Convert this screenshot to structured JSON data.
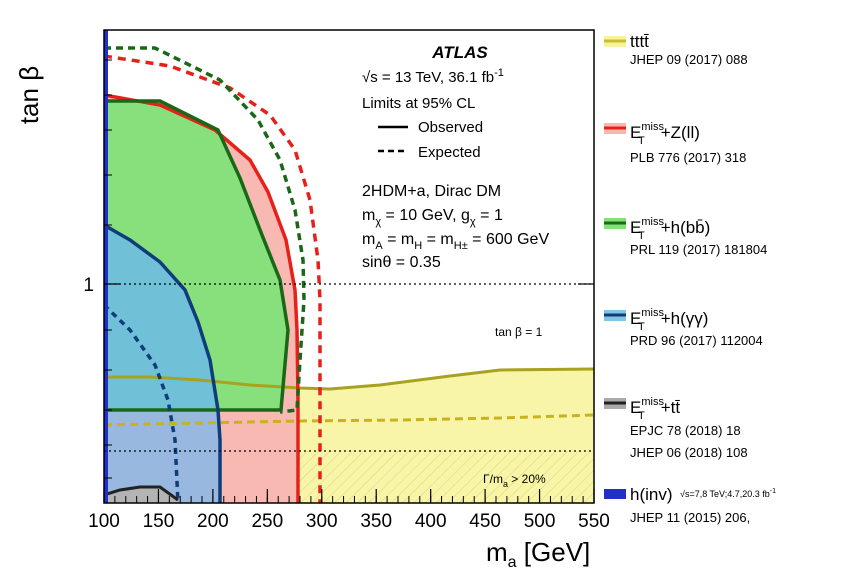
{
  "chart_data": {
    "type": "area",
    "experiment": "ATLAS",
    "energy_text": "√s = 13 TeV, 36.1 fb",
    "energy_sup": "-1",
    "cl_text": "Limits at 95% CL",
    "line_key": {
      "observed": "Observed",
      "expected": "Expected"
    },
    "model_lines": [
      "2HDM+a, Dirac DM",
      "m",
      "m",
      "sinθ = 0.35"
    ],
    "model_line2": {
      "a": "m",
      "a_sub": "χ",
      "b": " = 10 GeV, g",
      "b_sub": "χ",
      "c": " = 1"
    },
    "model_line3": {
      "a": "m",
      "a_sub": "A",
      "b": " = m",
      "b_sub": "H",
      "c": " = m",
      "c_sub": "H±",
      "d": " = 600 GeV"
    },
    "xlabel": "m",
    "xlabel_sub": "a",
    "xlabel_unit": " [GeV]",
    "ylabel": "tan β",
    "x_ticks": [
      100,
      150,
      200,
      250,
      300,
      350,
      400,
      450,
      500,
      550
    ],
    "xlim": [
      100,
      550
    ],
    "y_scale": "log",
    "y_tick_labels": [
      {
        "value": 1,
        "label": "1"
      }
    ],
    "tanb1_label": "tan β = 1",
    "width_label": "Γ/m",
    "width_label_sub": "a",
    "width_label_rest": " > 20%",
    "legend": [
      {
        "main": "tttt̄",
        "ref": "JHEP 09 (2017) 088",
        "color": "#d8d020",
        "fill": "#f5f2a0"
      },
      {
        "main": "E",
        "main_sup": "miss",
        "main_sub": "T",
        "main_rest": "+Z(ll)",
        "ref": "PLB 776 (2017) 318",
        "color": "#e8201a",
        "fill": "#f7b8b0"
      },
      {
        "main": "E",
        "main_sup": "miss",
        "main_sub": "T",
        "main_rest": "+h(bb̄)",
        "ref": "PRL 119 (2017) 181804",
        "color": "#1a6a1a",
        "fill": "#86e07a"
      },
      {
        "main": "E",
        "main_sup": "miss",
        "main_sub": "T",
        "main_rest": "+h(γγ)",
        "ref": "PRD 96 (2017) 112004",
        "color": "#0e3d7a",
        "fill": "#86c4e4"
      },
      {
        "main": "E",
        "main_sup": "miss",
        "main_sub": "T",
        "main_rest": "+tt̄",
        "ref": "EPJC 78 (2018) 18",
        "ref2": "JHEP 06 (2018) 108",
        "color": "#222222",
        "fill": "#aaaaaa"
      },
      {
        "main": "h(inv)",
        "main_small": "√s=7,8 TeV;4.7,20.3 fb",
        "main_small_sup": "-1",
        "ref": "JHEP 11 (2015) 206,",
        "color": "#2030c8",
        "fill": "#2030c8"
      }
    ]
  }
}
